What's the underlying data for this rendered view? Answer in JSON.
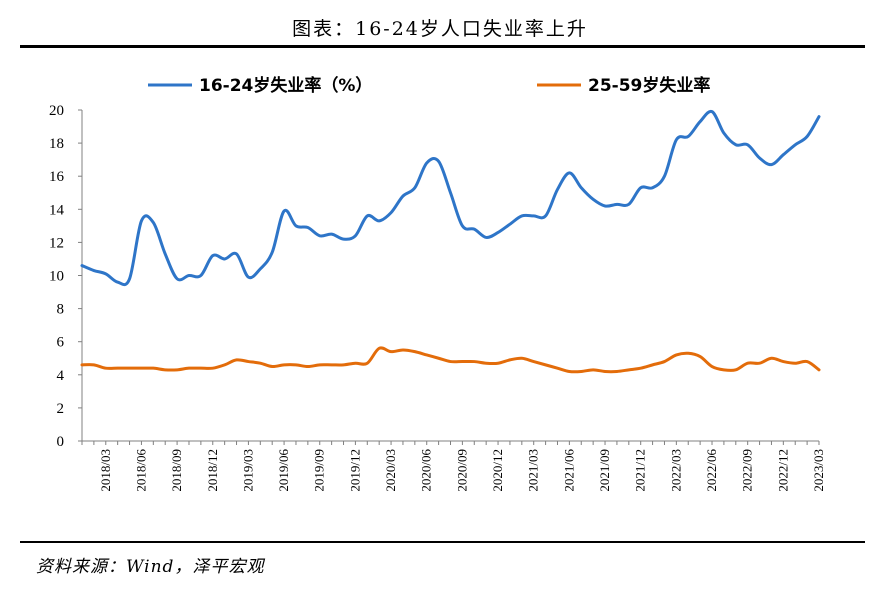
{
  "header": {
    "title": "图表：16-24岁人口失业率上升"
  },
  "footer": {
    "source": "资料来源：Wind，泽平宏观"
  },
  "chart_data": {
    "type": "line",
    "title": "图表：16-24岁人口失业率上升",
    "xlabel": "",
    "ylabel": "",
    "ylim": [
      0,
      20
    ],
    "yticks": [
      0,
      2,
      4,
      6,
      8,
      10,
      12,
      14,
      16,
      18,
      20
    ],
    "grid": false,
    "legend_position": "top",
    "x_tick_labels": [
      "2018/03",
      "2018/06",
      "2018/09",
      "2018/12",
      "2019/03",
      "2019/06",
      "2019/09",
      "2019/12",
      "2020/03",
      "2020/06",
      "2020/09",
      "2020/12",
      "2021/03",
      "2021/06",
      "2021/09",
      "2021/12",
      "2022/03",
      "2022/06",
      "2022/09",
      "2022/12",
      "2023/03"
    ],
    "x": [
      "2018/01",
      "2018/02",
      "2018/03",
      "2018/04",
      "2018/05",
      "2018/06",
      "2018/07",
      "2018/08",
      "2018/09",
      "2018/10",
      "2018/11",
      "2018/12",
      "2019/01",
      "2019/02",
      "2019/03",
      "2019/04",
      "2019/05",
      "2019/06",
      "2019/07",
      "2019/08",
      "2019/09",
      "2019/10",
      "2019/11",
      "2019/12",
      "2020/01",
      "2020/02",
      "2020/03",
      "2020/04",
      "2020/05",
      "2020/06",
      "2020/07",
      "2020/08",
      "2020/09",
      "2020/10",
      "2020/11",
      "2020/12",
      "2021/01",
      "2021/02",
      "2021/03",
      "2021/04",
      "2021/05",
      "2021/06",
      "2021/07",
      "2021/08",
      "2021/09",
      "2021/10",
      "2021/11",
      "2021/12",
      "2022/01",
      "2022/02",
      "2022/03",
      "2022/04",
      "2022/05",
      "2022/06",
      "2022/07",
      "2022/08",
      "2022/09",
      "2022/10",
      "2022/11",
      "2022/12",
      "2023/01",
      "2023/02",
      "2023/03"
    ],
    "series": [
      {
        "name": "16-24岁失业率（%）",
        "color": "#2E75C8",
        "values": [
          10.6,
          10.3,
          10.1,
          9.6,
          9.8,
          13.3,
          13.2,
          11.3,
          9.8,
          10.0,
          10.0,
          11.2,
          11.0,
          11.3,
          9.9,
          10.4,
          11.4,
          13.9,
          13.0,
          12.9,
          12.4,
          12.5,
          12.2,
          12.4,
          13.6,
          13.3,
          13.8,
          14.8,
          15.3,
          16.8,
          16.9,
          15.0,
          13.0,
          12.8,
          12.3,
          12.6,
          13.1,
          13.6,
          13.6,
          13.6,
          15.2,
          16.2,
          15.3,
          14.6,
          14.2,
          14.3,
          14.3,
          15.3,
          15.3,
          16.0,
          18.2,
          18.4,
          19.3,
          19.9,
          18.6,
          17.9,
          17.9,
          17.1,
          16.7,
          17.3,
          17.9,
          18.4,
          19.6
        ]
      },
      {
        "name": "25-59岁失业率",
        "color": "#E36C0A",
        "values": [
          4.6,
          4.6,
          4.4,
          4.4,
          4.4,
          4.4,
          4.4,
          4.3,
          4.3,
          4.4,
          4.4,
          4.4,
          4.6,
          4.9,
          4.8,
          4.7,
          4.5,
          4.6,
          4.6,
          4.5,
          4.6,
          4.6,
          4.6,
          4.7,
          4.7,
          5.6,
          5.4,
          5.5,
          5.4,
          5.2,
          5.0,
          4.8,
          4.8,
          4.8,
          4.7,
          4.7,
          4.9,
          5.0,
          4.8,
          4.6,
          4.4,
          4.2,
          4.2,
          4.3,
          4.2,
          4.2,
          4.3,
          4.4,
          4.6,
          4.8,
          5.2,
          5.3,
          5.1,
          4.5,
          4.3,
          4.3,
          4.7,
          4.7,
          5.0,
          4.8,
          4.7,
          4.8,
          4.3
        ]
      }
    ]
  }
}
